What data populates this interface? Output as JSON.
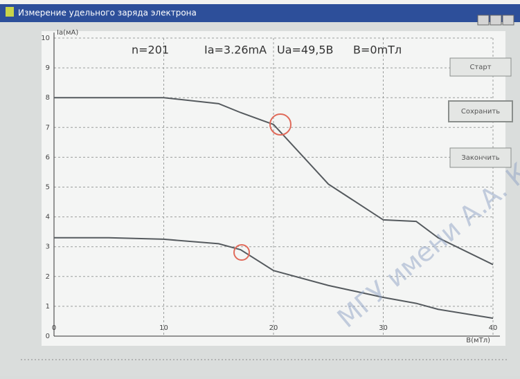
{
  "window": {
    "title": "Измерение удельного заряда электрона",
    "status": [
      "n=201",
      "Ia=3.26mA",
      "Ua=49,5B",
      "B=0mTл"
    ],
    "buttons": [
      "Старт",
      "Сохранить",
      "Закончить"
    ],
    "watermark": "МГУ имени А.А. К"
  },
  "chart_data": {
    "type": "line",
    "x_label": "B(мТл)",
    "y_label": "Ia(мА)",
    "x": [
      0,
      5,
      10,
      15,
      17,
      20,
      25,
      30,
      33,
      35,
      40
    ],
    "series": [
      {
        "color": "#555a5e",
        "values": [
          8,
          8,
          8,
          7.8,
          7.5,
          7.1,
          5.1,
          3.9,
          3.85,
          3.3,
          2.4
        ]
      },
      {
        "color": "#555a5e",
        "values": [
          3.3,
          3.3,
          3.25,
          3.1,
          2.9,
          2.2,
          1.7,
          1.3,
          1.1,
          0.9,
          0.6
        ]
      }
    ],
    "xlim": [
      0,
      40
    ],
    "ylim": [
      0,
      10
    ],
    "xticks": [
      0,
      10,
      20,
      30,
      40
    ],
    "yticks": [
      0,
      1,
      2,
      3,
      4,
      5,
      6,
      7,
      8,
      9,
      10
    ],
    "grid": true
  }
}
